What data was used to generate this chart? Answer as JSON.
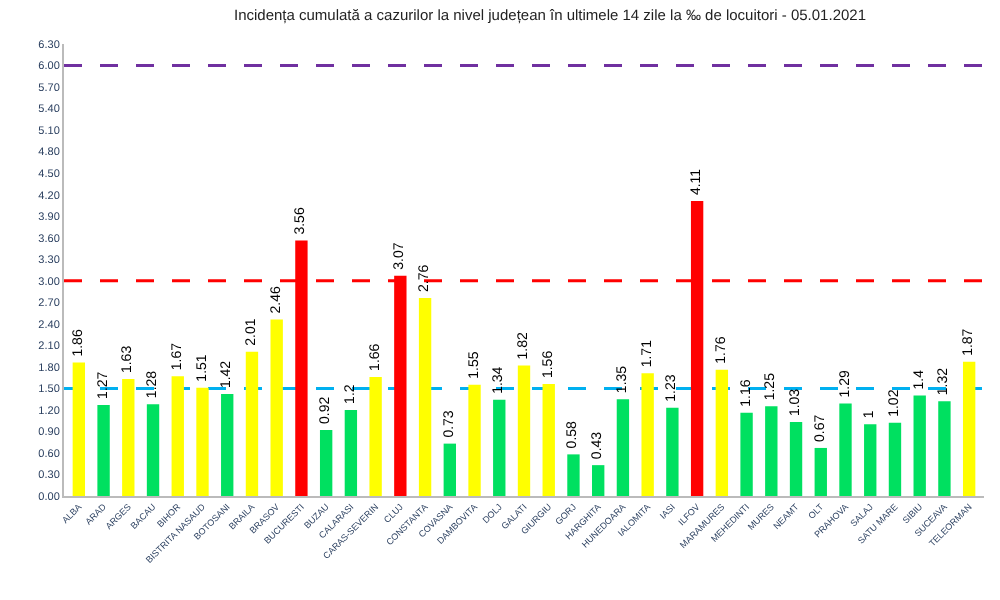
{
  "chart_data": {
    "type": "bar",
    "title": "Incidența cumulată a cazurilor la nivel județean în ultimele 14 zile la ‰ de locuitori - 05.01.2021",
    "categories": [
      "ALBA",
      "ARAD",
      "ARGES",
      "BACAU",
      "BIHOR",
      "BISTRITA NASAUD",
      "BOTOSANI",
      "BRAILA",
      "BRASOV",
      "BUCURESTI",
      "BUZAU",
      "CALARASI",
      "CARAS-SEVERIN",
      "CLUJ",
      "CONSTANTA",
      "COVASNA",
      "DAMBOVITA",
      "DOLJ",
      "GALATI",
      "GIURGIU",
      "GORJ",
      "HARGHITA",
      "HUNEDOARA",
      "IALOMITA",
      "IASI",
      "ILFOV",
      "MARAMURES",
      "MEHEDINTI",
      "MURES",
      "NEAMT",
      "OLT",
      "PRAHOVA",
      "SALAJ",
      "SATU MARE",
      "SIBIU",
      "SUCEAVA",
      "TELEORMAN"
    ],
    "values": [
      1.86,
      1.27,
      1.63,
      1.28,
      1.67,
      1.51,
      1.42,
      2.01,
      2.46,
      3.56,
      0.92,
      1.2,
      1.66,
      3.07,
      2.76,
      0.73,
      1.55,
      1.34,
      1.82,
      1.56,
      0.58,
      0.43,
      1.35,
      1.71,
      1.23,
      4.11,
      1.76,
      1.16,
      1.25,
      1.03,
      0.67,
      1.29,
      1,
      1.02,
      1.4,
      1.32,
      1.87
    ],
    "colors": [
      "#ffff00",
      "#00e060",
      "#ffff00",
      "#00e060",
      "#ffff00",
      "#ffff00",
      "#00e060",
      "#ffff00",
      "#ffff00",
      "#ff0000",
      "#00e060",
      "#00e060",
      "#ffff00",
      "#ff0000",
      "#ffff00",
      "#00e060",
      "#ffff00",
      "#00e060",
      "#ffff00",
      "#ffff00",
      "#00e060",
      "#00e060",
      "#00e060",
      "#ffff00",
      "#00e060",
      "#ff0000",
      "#ffff00",
      "#00e060",
      "#00e060",
      "#00e060",
      "#00e060",
      "#00e060",
      "#00e060",
      "#00e060",
      "#00e060",
      "#00e060",
      "#ffff00"
    ],
    "data_labels": true,
    "ylim": [
      0,
      6.3
    ],
    "yticks": [
      {
        "value": 0,
        "label": "0.00"
      },
      {
        "value": 0.3,
        "label": "0.30"
      },
      {
        "value": 0.6,
        "label": "0.60"
      },
      {
        "value": 0.9,
        "label": "0.90"
      },
      {
        "value": 1.2,
        "label": "1.20"
      },
      {
        "value": 1.5,
        "label": "1.50"
      },
      {
        "value": 1.8,
        "label": "1.80"
      },
      {
        "value": 2.1,
        "label": "2.10"
      },
      {
        "value": 2.4,
        "label": "2.40"
      },
      {
        "value": 2.7,
        "label": "2.70"
      },
      {
        "value": 3.0,
        "label": "3.00"
      },
      {
        "value": 3.3,
        "label": "3.30"
      },
      {
        "value": 3.6,
        "label": "3.60"
      },
      {
        "value": 3.9,
        "label": "3.90"
      },
      {
        "value": 4.2,
        "label": "4.20"
      },
      {
        "value": 4.5,
        "label": "4.50"
      },
      {
        "value": 4.8,
        "label": "4.80"
      },
      {
        "value": 5.1,
        "label": "5.10"
      },
      {
        "value": 5.4,
        "label": "5.40"
      },
      {
        "value": 5.7,
        "label": "5.70"
      },
      {
        "value": 6.0,
        "label": "6.00"
      },
      {
        "value": 6.3,
        "label": "6.30"
      }
    ],
    "ref_lines": [
      {
        "axis": "y",
        "value": 6,
        "color": "#7030a0",
        "line_style": "dashed"
      },
      {
        "axis": "y",
        "value": 3,
        "color": "#ff0000",
        "line_style": "dashed"
      },
      {
        "axis": "y",
        "value": 1.5,
        "color": "#00b0f0",
        "line_style": "dashed"
      }
    ],
    "grid": false
  }
}
